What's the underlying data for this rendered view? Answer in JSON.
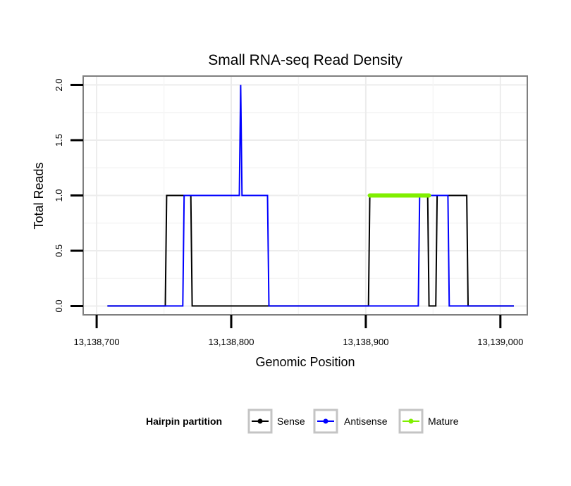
{
  "chart_data": {
    "type": "line",
    "title": "Small RNA-seq Read Density",
    "xlabel": "Genomic Position",
    "ylabel": "Total Reads",
    "xlim": [
      13138690,
      13139020
    ],
    "ylim": [
      -0.08,
      2.08
    ],
    "x_ticks": [
      13138700,
      13138800,
      13138900,
      13139000
    ],
    "x_tick_labels": [
      "13,138,700",
      "13,138,800",
      "13,138,900",
      "13,139,000"
    ],
    "y_ticks": [
      0,
      0.5,
      1,
      1.5,
      2
    ],
    "y_tick_labels": [
      "0.0",
      "0.5",
      "1.0",
      "1.5",
      "2.0"
    ],
    "grid": true,
    "legend": {
      "title": "Hairpin partition",
      "placement": "bottom",
      "entries": [
        "Sense",
        "Antisense",
        "Mature"
      ]
    },
    "series": [
      {
        "name": "Sense",
        "color": "#000000",
        "x": [
          13138708,
          13138751,
          13138752,
          13138770,
          13138771,
          13138902,
          13138903,
          13138946,
          13138947,
          13138952,
          13138953,
          13138975,
          13138976,
          13139010
        ],
        "values": [
          0,
          0,
          1,
          1,
          0,
          0,
          1,
          1,
          0,
          0,
          1,
          1,
          0,
          0
        ]
      },
      {
        "name": "Antisense",
        "color": "#0000ff",
        "x": [
          13138708,
          13138764,
          13138765,
          13138806,
          13138807,
          13138808,
          13138827,
          13138828,
          13138939,
          13138940,
          13138961,
          13138962,
          13139010
        ],
        "values": [
          0,
          0,
          1,
          1,
          2,
          1,
          1,
          0,
          0,
          1,
          1,
          0,
          0
        ]
      },
      {
        "name": "Mature",
        "color": "#80ef00",
        "x": [
          13138903,
          13138947
        ],
        "values": [
          1,
          1
        ]
      }
    ]
  }
}
